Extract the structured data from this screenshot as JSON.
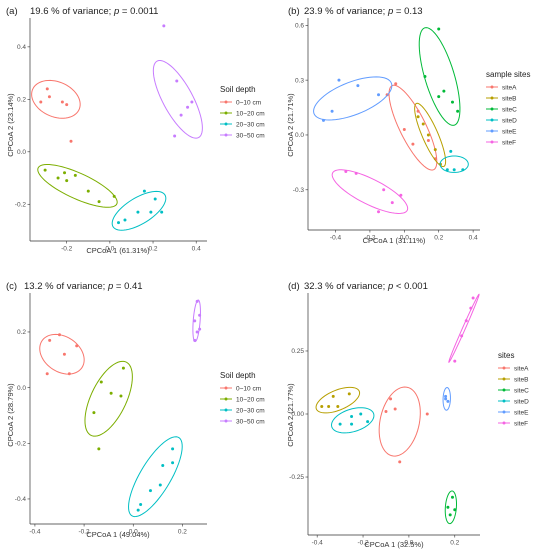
{
  "panels": [
    {
      "id": "a",
      "tag": "(a)",
      "title_pre": "19.6 % of variance; ",
      "title_p": "p",
      "title_post": " = 0.0011",
      "xlabel": "CPCoA 1 (61.31%)",
      "ylabel": "CPCoA 2 (23.14%)",
      "legend_title": "Soil depth",
      "xticks": [
        -0.2,
        0.0,
        0.2,
        0.4
      ],
      "xtick_labels": [
        "-0.2",
        "0.0",
        "0.2",
        "0.4"
      ],
      "yticks": [
        -0.2,
        0.0,
        0.2,
        0.4
      ],
      "ytick_labels": [
        "-0.2",
        "0.0",
        "0.2",
        "0.4"
      ]
    },
    {
      "id": "b",
      "tag": "(b)",
      "title_pre": "23.9 % of variance; ",
      "title_p": "p",
      "title_post": " = 0.13",
      "xlabel": "CPCoA 1 (31.11%)",
      "ylabel": "CPCoA 2 (21.71%)",
      "legend_title": "sample sites",
      "xticks": [
        -0.4,
        -0.2,
        0.0,
        0.2,
        0.4
      ],
      "xtick_labels": [
        "-0.4",
        "-0.2",
        "0.0",
        "0.2",
        "0.4"
      ],
      "yticks": [
        -0.3,
        0.0,
        0.3,
        0.6
      ],
      "ytick_labels": [
        "-0.3",
        "0.0",
        "0.3",
        "0.6"
      ]
    },
    {
      "id": "c",
      "tag": "(c)",
      "title_pre": "13.2 % of variance; ",
      "title_p": "p",
      "title_post": " = 0.41",
      "xlabel": "CPCoA 1 (49.04%)",
      "ylabel": "CPCoA 2 (28.79%)",
      "legend_title": "Soil depth",
      "xticks": [
        -0.4,
        -0.2,
        0.0,
        0.2
      ],
      "xtick_labels": [
        "-0.4",
        "-0.2",
        "0.0",
        "0.2"
      ],
      "yticks": [
        -0.4,
        -0.2,
        0.0,
        0.2
      ],
      "ytick_labels": [
        "-0.4",
        "-0.2",
        "0.0",
        "0.2"
      ]
    },
    {
      "id": "d",
      "tag": "(d)",
      "title_pre": "32.3 % of variance; ",
      "title_p": "p",
      "title_post": " < 0.001",
      "xlabel": "CPCoA 1 (32.5%)",
      "ylabel": "CPCoA 2 (21.77%)",
      "legend_title": "sites",
      "xticks": [
        -0.4,
        -0.2,
        0.0,
        0.2
      ],
      "xtick_labels": [
        "-0.4",
        "-0.2",
        "0.0",
        "0.2"
      ],
      "yticks": [
        -0.25,
        0.0,
        0.25
      ],
      "ytick_labels": [
        "-0.25",
        "0.00",
        "0.25"
      ]
    }
  ],
  "chart_data": [
    {
      "type": "scatter",
      "panel": "a",
      "title": "19.6 % of variance; p = 0.0011",
      "xlabel": "CPCoA 1 (61.31%)",
      "ylabel": "CPCoA 2 (23.14%)",
      "xlim": [
        -0.37,
        0.45
      ],
      "ylim": [
        -0.34,
        0.51
      ],
      "legend": "right",
      "grid": false,
      "series": [
        {
          "name": "0~10 cm",
          "color": "#F8766D",
          "points": [
            [
              -0.32,
              0.19
            ],
            [
              -0.28,
              0.21
            ],
            [
              -0.22,
              0.19
            ],
            [
              -0.2,
              0.18
            ],
            [
              -0.18,
              0.04
            ],
            [
              -0.29,
              0.24
            ]
          ],
          "ellipse": {
            "cx": -0.25,
            "cy": 0.2,
            "rx": 0.068,
            "ry": 0.115,
            "angle": 75
          }
        },
        {
          "name": "10~20 cm",
          "color": "#7CAE00",
          "points": [
            [
              -0.3,
              -0.07
            ],
            [
              -0.24,
              -0.1
            ],
            [
              -0.2,
              -0.11
            ],
            [
              -0.16,
              -0.09
            ],
            [
              -0.1,
              -0.15
            ],
            [
              -0.05,
              -0.19
            ],
            [
              0.02,
              -0.17
            ],
            [
              -0.21,
              -0.08
            ]
          ],
          "ellipse": {
            "cx": -0.15,
            "cy": -0.13,
            "rx": 0.195,
            "ry": 0.05,
            "angle": -20
          }
        },
        {
          "name": "20~30 cm",
          "color": "#00BFC4",
          "points": [
            [
              0.04,
              -0.27
            ],
            [
              0.07,
              -0.26
            ],
            [
              0.13,
              -0.23
            ],
            [
              0.19,
              -0.23
            ],
            [
              0.24,
              -0.23
            ],
            [
              0.21,
              -0.18
            ],
            [
              0.16,
              -0.15
            ]
          ],
          "ellipse": {
            "cx": 0.135,
            "cy": -0.225,
            "rx": 0.135,
            "ry": 0.052,
            "angle": 25
          }
        },
        {
          "name": "30~50 cm",
          "color": "#C77CFF",
          "points": [
            [
              0.25,
              0.48
            ],
            [
              0.31,
              0.27
            ],
            [
              0.36,
              0.17
            ],
            [
              0.38,
              0.19
            ],
            [
              0.33,
              0.14
            ],
            [
              0.3,
              0.06
            ]
          ],
          "ellipse": {
            "cx": 0.315,
            "cy": 0.2,
            "rx": 0.175,
            "ry": 0.065,
            "angle": -55
          }
        }
      ]
    },
    {
      "type": "scatter",
      "panel": "b",
      "title": "23.9 % of variance; p = 0.13",
      "xlabel": "CPCoA 1 (31.11%)",
      "ylabel": "CPCoA 2 (21.71%)",
      "xlim": [
        -0.56,
        0.44
      ],
      "ylim": [
        -0.52,
        0.64
      ],
      "legend": "right",
      "grid": false,
      "series": [
        {
          "name": "siteA",
          "color": "#F8766D",
          "points": [
            [
              -0.1,
              0.22
            ],
            [
              0.0,
              0.03
            ],
            [
              0.05,
              -0.05
            ],
            [
              0.08,
              0.13
            ],
            [
              0.18,
              -0.13
            ],
            [
              0.14,
              -0.03
            ],
            [
              -0.05,
              0.28
            ]
          ],
          "ellipse": {
            "cx": 0.05,
            "cy": 0.04,
            "rx": 0.26,
            "ry": 0.075,
            "angle": -62
          }
        },
        {
          "name": "siteB",
          "color": "#B79F00",
          "points": [
            [
              0.11,
              0.06
            ],
            [
              0.14,
              0.0
            ],
            [
              0.18,
              -0.08
            ],
            [
              0.21,
              -0.16
            ],
            [
              0.08,
              0.1
            ]
          ],
          "ellipse": {
            "cx": 0.15,
            "cy": 0.0,
            "rx": 0.19,
            "ry": 0.045,
            "angle": -65
          }
        },
        {
          "name": "siteC",
          "color": "#00BA38",
          "points": [
            [
              0.2,
              0.58
            ],
            [
              0.12,
              0.32
            ],
            [
              0.2,
              0.21
            ],
            [
              0.28,
              0.18
            ],
            [
              0.31,
              0.13
            ],
            [
              0.23,
              0.24
            ]
          ],
          "ellipse": {
            "cx": 0.205,
            "cy": 0.32,
            "rx": 0.28,
            "ry": 0.085,
            "angle": -72
          }
        },
        {
          "name": "siteD",
          "color": "#00BFC4",
          "points": [
            [
              0.27,
              -0.09
            ],
            [
              0.29,
              -0.19
            ],
            [
              0.34,
              -0.19
            ],
            [
              0.25,
              -0.19
            ]
          ],
          "ellipse": {
            "cx": 0.29,
            "cy": -0.16,
            "rx": 0.082,
            "ry": 0.045,
            "angle": 0
          }
        },
        {
          "name": "siteE",
          "color": "#619CFF",
          "points": [
            [
              -0.38,
              0.3
            ],
            [
              -0.42,
              0.13
            ],
            [
              -0.27,
              0.27
            ],
            [
              -0.15,
              0.22
            ],
            [
              -0.47,
              0.08
            ]
          ],
          "ellipse": {
            "cx": -0.3,
            "cy": 0.2,
            "rx": 0.24,
            "ry": 0.09,
            "angle": 20
          }
        },
        {
          "name": "siteF",
          "color": "#F564E3",
          "points": [
            [
              -0.34,
              -0.2
            ],
            [
              -0.28,
              -0.21
            ],
            [
              -0.12,
              -0.3
            ],
            [
              -0.02,
              -0.33
            ],
            [
              -0.07,
              -0.37
            ],
            [
              -0.15,
              -0.42
            ]
          ],
          "ellipse": {
            "cx": -0.2,
            "cy": -0.31,
            "rx": 0.24,
            "ry": 0.07,
            "angle": -25
          }
        }
      ]
    },
    {
      "type": "scatter",
      "panel": "c",
      "title": "13.2 % of variance; p = 0.41",
      "xlabel": "CPCoA 1 (49.04%)",
      "ylabel": "CPCoA 2 (28.79%)",
      "xlim": [
        -0.42,
        0.3
      ],
      "ylim": [
        -0.49,
        0.34
      ],
      "legend": "right",
      "grid": false,
      "series": [
        {
          "name": "0~10 cm",
          "color": "#F8766D",
          "points": [
            [
              -0.34,
              0.17
            ],
            [
              -0.3,
              0.19
            ],
            [
              -0.28,
              0.12
            ],
            [
              -0.23,
              0.15
            ],
            [
              -0.26,
              0.05
            ],
            [
              -0.35,
              0.05
            ]
          ],
          "ellipse": {
            "cx": -0.29,
            "cy": 0.12,
            "rx": 0.095,
            "ry": 0.065,
            "angle": -25
          }
        },
        {
          "name": "10~20 cm",
          "color": "#7CAE00",
          "points": [
            [
              -0.13,
              0.02
            ],
            [
              -0.09,
              -0.02
            ],
            [
              -0.05,
              -0.03
            ],
            [
              -0.04,
              0.07
            ],
            [
              -0.16,
              -0.09
            ],
            [
              -0.14,
              -0.22
            ]
          ],
          "ellipse": {
            "cx": -0.1,
            "cy": -0.04,
            "rx": 0.15,
            "ry": 0.07,
            "angle": 60
          }
        },
        {
          "name": "20~30 cm",
          "color": "#00BFC4",
          "points": [
            [
              0.03,
              -0.42
            ],
            [
              0.07,
              -0.37
            ],
            [
              0.12,
              -0.28
            ],
            [
              0.16,
              -0.22
            ],
            [
              0.16,
              -0.27
            ],
            [
              0.02,
              -0.44
            ],
            [
              0.11,
              -0.35
            ]
          ],
          "ellipse": {
            "cx": 0.09,
            "cy": -0.32,
            "rx": 0.17,
            "ry": 0.06,
            "angle": 55
          }
        },
        {
          "name": "30~50 cm",
          "color": "#C77CFF",
          "points": [
            [
              0.26,
              0.31
            ],
            [
              0.25,
              0.24
            ],
            [
              0.26,
              0.2
            ],
            [
              0.27,
              0.21
            ],
            [
              0.25,
              0.17
            ],
            [
              0.27,
              0.26
            ]
          ],
          "ellipse": {
            "cx": 0.258,
            "cy": 0.24,
            "rx": 0.075,
            "ry": 0.014,
            "angle": 85
          }
        }
      ]
    },
    {
      "type": "scatter",
      "panel": "d",
      "title": "32.3 % of variance; p < 0.001",
      "xlabel": "CPCoA 1 (32.5%)",
      "ylabel": "CPCoA 2 (21.77%)",
      "xlim": [
        -0.44,
        0.31
      ],
      "ylim": [
        -0.48,
        0.48
      ],
      "legend": "right",
      "grid": false,
      "series": [
        {
          "name": "siteA",
          "color": "#F8766D",
          "points": [
            [
              -0.08,
              0.06
            ],
            [
              -0.06,
              0.02
            ],
            [
              -0.04,
              -0.19
            ],
            [
              0.08,
              0.0
            ],
            [
              -0.1,
              0.01
            ]
          ],
          "ellipse": {
            "cx": -0.04,
            "cy": -0.03,
            "rx": 0.14,
            "ry": 0.085,
            "angle": 75
          }
        },
        {
          "name": "siteB",
          "color": "#B79F00",
          "points": [
            [
              -0.38,
              0.03
            ],
            [
              -0.33,
              0.07
            ],
            [
              -0.31,
              0.03
            ],
            [
              -0.26,
              0.08
            ],
            [
              -0.35,
              0.03
            ]
          ],
          "ellipse": {
            "cx": -0.31,
            "cy": 0.055,
            "rx": 0.1,
            "ry": 0.04,
            "angle": 20
          }
        },
        {
          "name": "siteC",
          "color": "#00BA38",
          "points": [
            [
              0.17,
              -0.37
            ],
            [
              0.18,
              -0.4
            ],
            [
              0.19,
              -0.33
            ],
            [
              0.2,
              -0.38
            ]
          ],
          "ellipse": {
            "cx": 0.183,
            "cy": -0.37,
            "rx": 0.065,
            "ry": 0.024,
            "angle": 85
          }
        },
        {
          "name": "siteD",
          "color": "#00BFC4",
          "points": [
            [
              -0.3,
              -0.04
            ],
            [
              -0.25,
              -0.04
            ],
            [
              -0.21,
              0.0
            ],
            [
              -0.18,
              -0.03
            ],
            [
              -0.25,
              -0.01
            ]
          ],
          "ellipse": {
            "cx": -0.245,
            "cy": -0.025,
            "rx": 0.095,
            "ry": 0.045,
            "angle": 15
          }
        },
        {
          "name": "siteE",
          "color": "#619CFF",
          "points": [
            [
              0.16,
              0.07
            ],
            [
              0.17,
              0.05
            ],
            [
              0.16,
              0.06
            ]
          ],
          "ellipse": {
            "cx": 0.165,
            "cy": 0.06,
            "rx": 0.045,
            "ry": 0.016,
            "angle": 88
          }
        },
        {
          "name": "siteF",
          "color": "#F564E3",
          "points": [
            [
              0.2,
              0.21
            ],
            [
              0.23,
              0.31
            ],
            [
              0.25,
              0.37
            ],
            [
              0.27,
              0.42
            ],
            [
              0.28,
              0.46
            ]
          ],
          "ellipse": {
            "cx": 0.24,
            "cy": 0.34,
            "rx": 0.15,
            "ry": 0.006,
            "angle": 64
          }
        }
      ]
    }
  ]
}
